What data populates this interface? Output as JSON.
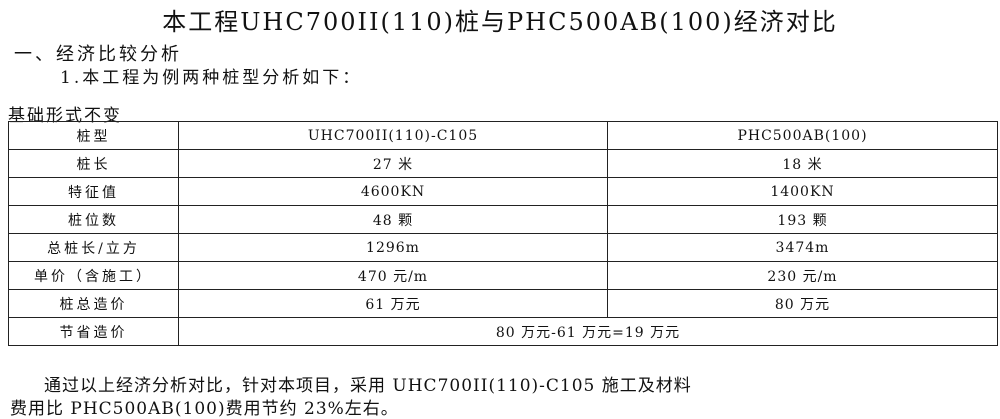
{
  "title": "本工程UHC700II(110)桩与PHC500AB(100)经济对比",
  "section": "一、经济比较分析",
  "item": "1.本工程为例两种桩型分析如下：",
  "basis": "基础形式不变",
  "table": {
    "rows": [
      [
        "桩型",
        "UHC700II(110)-C105",
        "PHC500AB(100)"
      ],
      [
        "桩长",
        "27 米",
        "18 米"
      ],
      [
        "特征值",
        "4600KN",
        "1400KN"
      ],
      [
        "桩位数",
        "48 颗",
        "193 颗"
      ],
      [
        "总桩长/立方",
        "1296m",
        "3474m"
      ],
      [
        "单价（含施工）",
        "470 元/m",
        "230 元/m"
      ],
      [
        "桩总造价",
        "61 万元",
        "80 万元"
      ]
    ],
    "saving_label": "节省造价",
    "saving_value": "80 万元-61 万元=19 万元"
  },
  "conclusion_line1": "通过以上经济分析对比，针对本项目，采用 UHC700II(110)-C105 施工及材料",
  "conclusion_line2": "费用比 PHC500AB(100)费用节约 23%左右。"
}
